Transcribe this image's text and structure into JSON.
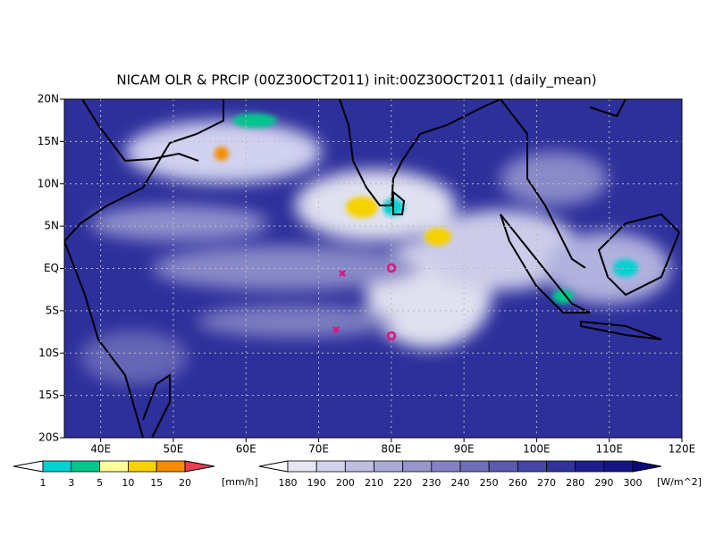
{
  "title": "NICAM OLR & PRCIP (00Z30OCT2011) init:00Z30OCT2011 (daily_mean)",
  "map": {
    "lat_labels": [
      "20N",
      "15N",
      "10N",
      "5N",
      "EQ",
      "5S",
      "10S",
      "15S",
      "20S"
    ],
    "lon_labels": [
      "40E",
      "50E",
      "60E",
      "70E",
      "80E",
      "90E",
      "100E",
      "110E",
      "120E"
    ]
  },
  "precip_colorbar": {
    "labels": [
      1,
      3,
      5,
      10,
      15,
      20
    ],
    "unit": "[mm/h]",
    "colors": [
      "#ffffff",
      "#00d2d2",
      "#00c88c",
      "#ffff9b",
      "#f5d200",
      "#f58c00",
      "#f03c50"
    ]
  },
  "olr_colorbar": {
    "labels": [
      180,
      190,
      200,
      210,
      220,
      230,
      240,
      250,
      260,
      270,
      280,
      290,
      300
    ],
    "unit": "[W/m^2]",
    "colors": [
      "#ffffff",
      "#e6e6f5",
      "#d2d2eb",
      "#bebee1",
      "#aaaad7",
      "#9696cd",
      "#8282c3",
      "#6e6eb9",
      "#5a5aaf",
      "#4646a5",
      "#32329b",
      "#1e1e91",
      "#141487",
      "#0a0a7d"
    ]
  }
}
